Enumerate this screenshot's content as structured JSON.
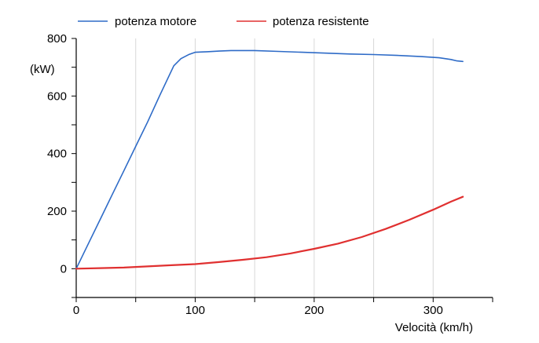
{
  "chart_data": {
    "type": "line",
    "xlabel": "Velocità (km/h)",
    "ylabel": "(kW)",
    "xlim": [
      0,
      350
    ],
    "ylim": [
      -100,
      800
    ],
    "x_ticks": [
      0,
      100,
      200,
      300
    ],
    "y_ticks": [
      0,
      200,
      400,
      600,
      800
    ],
    "x_minor_ticks": [
      50,
      150,
      250,
      350
    ],
    "y_minor_ticks": [
      -100,
      100,
      300,
      500,
      700
    ],
    "grid": "vertical",
    "legend_position": "top",
    "series": [
      {
        "name": "potenza motore",
        "color": "#2e6bc7",
        "points": [
          [
            0,
            0
          ],
          [
            10,
            85
          ],
          [
            20,
            170
          ],
          [
            30,
            255
          ],
          [
            40,
            340
          ],
          [
            50,
            425
          ],
          [
            60,
            510
          ],
          [
            70,
            600
          ],
          [
            78,
            670
          ],
          [
            82,
            705
          ],
          [
            88,
            730
          ],
          [
            95,
            745
          ],
          [
            100,
            752
          ],
          [
            110,
            754
          ],
          [
            120,
            756
          ],
          [
            130,
            758
          ],
          [
            150,
            758
          ],
          [
            170,
            755
          ],
          [
            190,
            752
          ],
          [
            210,
            749
          ],
          [
            230,
            746
          ],
          [
            250,
            744
          ],
          [
            270,
            741
          ],
          [
            290,
            737
          ],
          [
            305,
            733
          ],
          [
            315,
            727
          ],
          [
            320,
            722
          ],
          [
            325,
            720
          ]
        ]
      },
      {
        "name": "potenza resistente",
        "color": "#e03030",
        "points": [
          [
            0,
            0
          ],
          [
            20,
            2
          ],
          [
            40,
            4
          ],
          [
            60,
            8
          ],
          [
            80,
            12
          ],
          [
            100,
            16
          ],
          [
            120,
            23
          ],
          [
            140,
            31
          ],
          [
            160,
            40
          ],
          [
            180,
            53
          ],
          [
            200,
            69
          ],
          [
            220,
            87
          ],
          [
            240,
            110
          ],
          [
            260,
            138
          ],
          [
            280,
            170
          ],
          [
            300,
            205
          ],
          [
            315,
            233
          ],
          [
            325,
            250
          ]
        ]
      }
    ]
  }
}
